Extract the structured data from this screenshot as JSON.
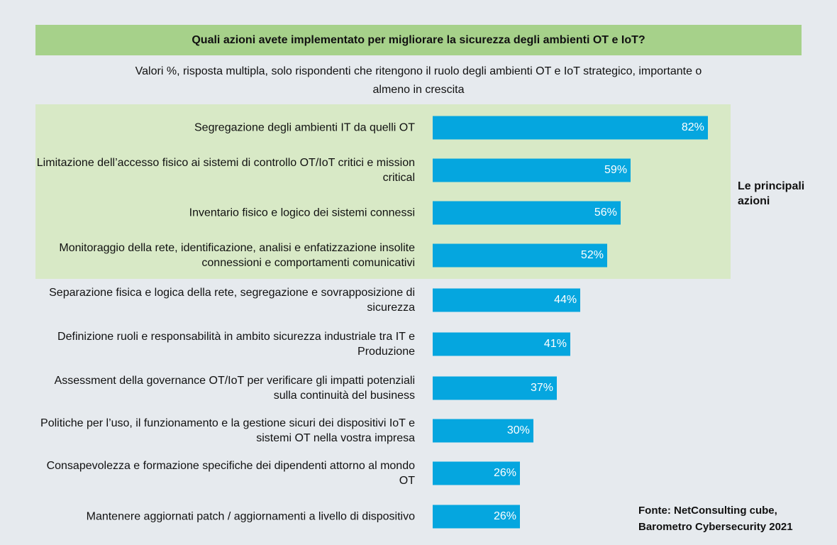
{
  "chart_data": {
    "type": "barh",
    "title": "Quali azioni avete implementato per migliorare la sicurezza degli ambienti OT e IoT?",
    "subtitle": "Valori %, risposta multipla, solo rispondenti che ritengono il ruolo degli ambienti OT e IoT strategico, importante o almeno in crescita",
    "categories": [
      "Segregazione degli ambienti IT da quelli OT",
      "Limitazione dell’accesso fisico ai sistemi di controllo OT/IoT critici e mission critical",
      "Inventario fisico e logico dei sistemi connessi",
      "Monitoraggio della rete, identificazione, analisi e enfatizzazione insolite connessioni e comportamenti comunicativi",
      "Separazione fisica e logica della rete, segregazione e sovrapposizione di sicurezza",
      "Definizione ruoli e responsabilità in ambito sicurezza industriale tra IT e Produzione",
      "Assessment della governance OT/IoT per verificare gli impatti potenziali sulla continuità del business",
      "Politiche per l’uso, il funzionamento e la gestione sicuri dei dispositivi IoT e sistemi OT nella vostra impresa",
      "Consapevolezza e formazione specifiche dei dipendenti attorno al mondo OT",
      "Mantenere aggiornati patch / aggiornamenti a livello di dispositivo"
    ],
    "values": [
      82,
      59,
      56,
      52,
      44,
      41,
      37,
      30,
      26,
      26
    ],
    "value_labels": [
      "82%",
      "59%",
      "56%",
      "52%",
      "44%",
      "41%",
      "37%",
      "30%",
      "26%",
      "26%"
    ],
    "color": "#05a6df",
    "annotation": "Le principali azioni",
    "source": "Fonte: NetConsulting cube, Barometro Cybersecurity 2021"
  }
}
